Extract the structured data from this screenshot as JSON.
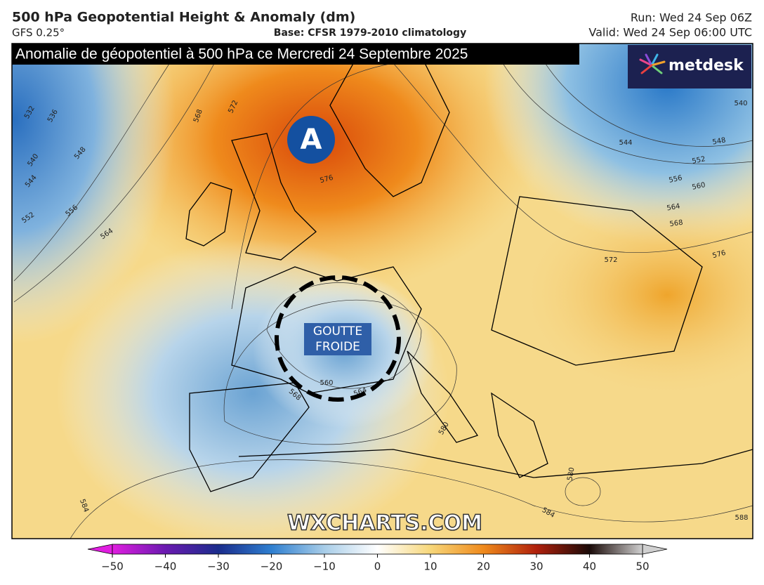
{
  "header": {
    "title": "500 hPa Geopotential Height & Anomaly (dm)",
    "model": "GFS 0.25°",
    "base": "Base: CFSR 1979-2010 climatology",
    "run": "Run: Wed 24 Sep 06Z",
    "valid": "Valid: Wed 24 Sep 06:00 UTC"
  },
  "banner": "Anomalie de géopotentiel à 500 hPa ce Mercredi 24 Septembre 2025",
  "logo": "metdesk",
  "high_marker": "A",
  "cold_drop": {
    "line1": "GOUTTE",
    "line2": "FROIDE"
  },
  "watermark": "WXCHARTS.COM",
  "contour_labels": [
    "532",
    "536",
    "540",
    "544",
    "548",
    "552",
    "556",
    "564",
    "568",
    "572",
    "576",
    "540",
    "544",
    "548",
    "552",
    "556",
    "560",
    "564",
    "568",
    "572",
    "576",
    "560",
    "564",
    "568",
    "580",
    "584",
    "588",
    "584",
    "580"
  ],
  "colorbar": {
    "ticks": [
      {
        "value": -50,
        "label": "−50"
      },
      {
        "value": -40,
        "label": "−40"
      },
      {
        "value": -30,
        "label": "−30"
      },
      {
        "value": -20,
        "label": "−20"
      },
      {
        "value": -10,
        "label": "−10"
      },
      0,
      10,
      20,
      30,
      40,
      50
    ],
    "lim": [
      -50,
      50
    ]
  }
}
